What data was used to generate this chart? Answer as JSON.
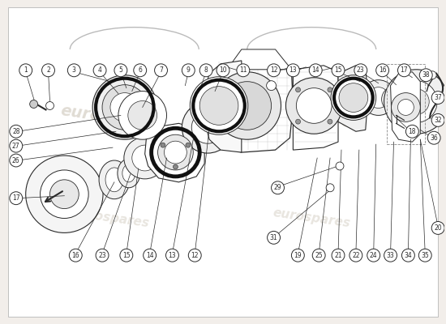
{
  "bg_color": "#f2eeea",
  "watermark_color": "#ccc5b8",
  "line_color": "#2a2a2a",
  "fig_width": 5.5,
  "fig_height": 4.0,
  "dpi": 100,
  "numbers_top_left": [
    {
      "n": "1",
      "bx": 0.055,
      "by": 0.785
    },
    {
      "n": "2",
      "bx": 0.09,
      "by": 0.785
    },
    {
      "n": "3",
      "bx": 0.13,
      "by": 0.785
    },
    {
      "n": "4",
      "bx": 0.185,
      "by": 0.785
    },
    {
      "n": "5",
      "bx": 0.22,
      "by": 0.785
    },
    {
      "n": "6",
      "bx": 0.255,
      "by": 0.785
    },
    {
      "n": "7",
      "bx": 0.29,
      "by": 0.785
    },
    {
      "n": "9",
      "bx": 0.34,
      "by": 0.785
    },
    {
      "n": "8",
      "bx": 0.365,
      "by": 0.785
    },
    {
      "n": "10",
      "bx": 0.39,
      "by": 0.785
    },
    {
      "n": "11",
      "bx": 0.425,
      "by": 0.785
    }
  ],
  "numbers_top_right": [
    {
      "n": "12",
      "bx": 0.465,
      "by": 0.785
    },
    {
      "n": "13",
      "bx": 0.495,
      "by": 0.785
    },
    {
      "n": "14",
      "bx": 0.53,
      "by": 0.785
    },
    {
      "n": "15",
      "bx": 0.565,
      "by": 0.785
    },
    {
      "n": "23",
      "bx": 0.6,
      "by": 0.785
    },
    {
      "n": "16",
      "bx": 0.635,
      "by": 0.785
    },
    {
      "n": "17",
      "bx": 0.67,
      "by": 0.785
    }
  ],
  "numbers_left": [
    {
      "n": "28",
      "bx": 0.025,
      "by": 0.53
    },
    {
      "n": "27",
      "bx": 0.025,
      "by": 0.49
    },
    {
      "n": "26",
      "bx": 0.025,
      "by": 0.45
    },
    {
      "n": "17",
      "bx": 0.025,
      "by": 0.31
    }
  ],
  "numbers_right": [
    {
      "n": "38",
      "bx": 0.87,
      "by": 0.63
    },
    {
      "n": "37",
      "bx": 0.93,
      "by": 0.585
    },
    {
      "n": "32",
      "bx": 0.93,
      "by": 0.515
    },
    {
      "n": "36",
      "bx": 0.93,
      "by": 0.445
    },
    {
      "n": "18",
      "bx": 0.74,
      "by": 0.5
    },
    {
      "n": "20",
      "bx": 0.93,
      "by": 0.275
    }
  ],
  "numbers_bot_left": [
    {
      "n": "16",
      "bx": 0.13,
      "by": 0.1
    },
    {
      "n": "23",
      "bx": 0.175,
      "by": 0.1
    },
    {
      "n": "15",
      "bx": 0.215,
      "by": 0.1
    },
    {
      "n": "14",
      "bx": 0.255,
      "by": 0.1
    },
    {
      "n": "13",
      "bx": 0.295,
      "by": 0.1
    },
    {
      "n": "12",
      "bx": 0.33,
      "by": 0.1
    }
  ],
  "numbers_bot_right": [
    {
      "n": "29",
      "bx": 0.47,
      "by": 0.295
    },
    {
      "n": "31",
      "bx": 0.47,
      "by": 0.155
    },
    {
      "n": "19",
      "bx": 0.5,
      "by": 0.1
    },
    {
      "n": "25",
      "bx": 0.54,
      "by": 0.1
    },
    {
      "n": "21",
      "bx": 0.575,
      "by": 0.1
    },
    {
      "n": "22",
      "bx": 0.608,
      "by": 0.1
    },
    {
      "n": "24",
      "bx": 0.64,
      "by": 0.1
    },
    {
      "n": "33",
      "bx": 0.672,
      "by": 0.1
    },
    {
      "n": "34",
      "bx": 0.704,
      "by": 0.1
    },
    {
      "n": "35",
      "bx": 0.736,
      "by": 0.1
    }
  ]
}
